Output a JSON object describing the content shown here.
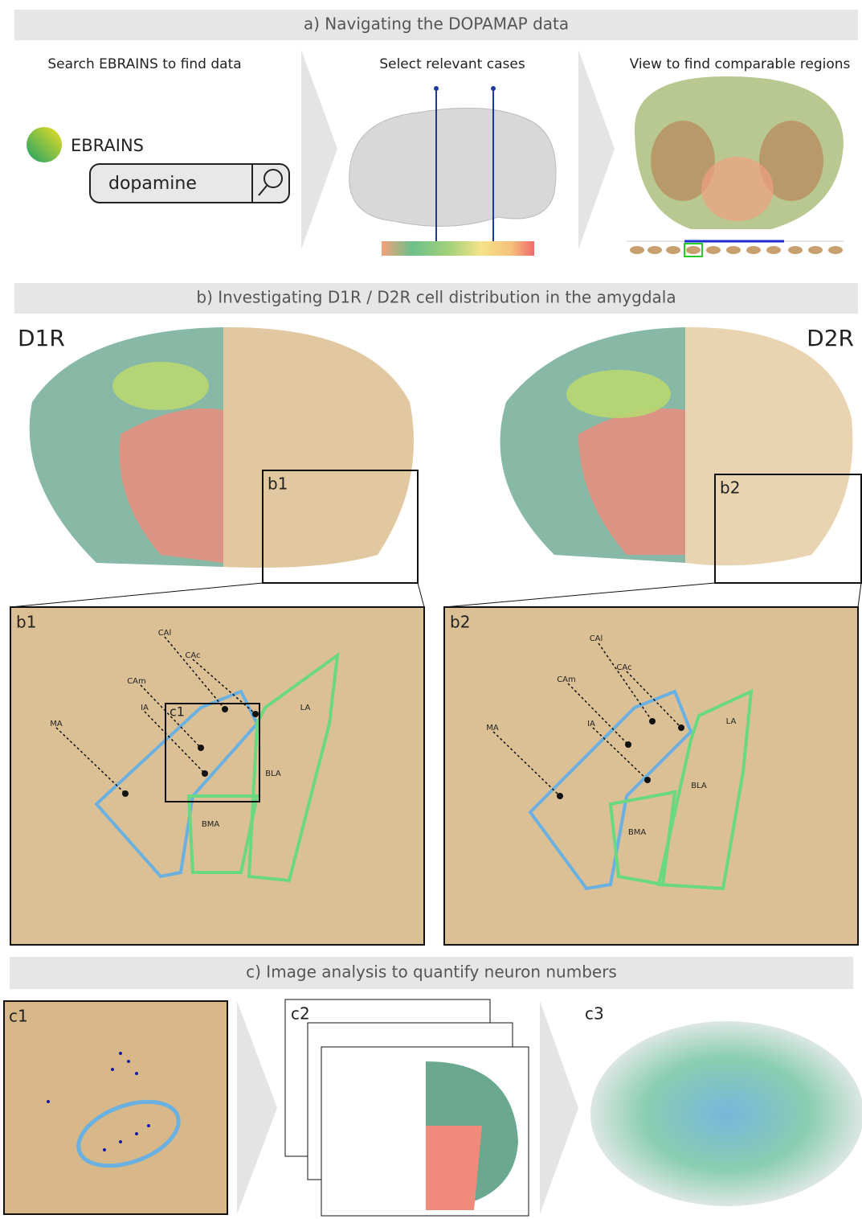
{
  "panel_a": {
    "title": "a) Navigating the DOPAMAP data",
    "steps": [
      "Search EBRAINS to find data",
      "Select relevant cases",
      "View to find comparable regions"
    ],
    "logo_text": "EBRAINS",
    "search_text": "dopamine"
  },
  "panel_b": {
    "title": "b) Investigating D1R / D2R cell distribution in the amygdala",
    "overview": [
      {
        "label": "D1R",
        "inset": "b1"
      },
      {
        "label": "D2R",
        "inset": "b2"
      }
    ],
    "zooms": [
      {
        "regions": [
          "CAl",
          "CAc",
          "CAm",
          "IA",
          "MA",
          "LA",
          "BLA",
          "BMA"
        ],
        "box_label": "c1"
      },
      {
        "regions": [
          "CAl",
          "CAc",
          "CAm",
          "IA",
          "MA",
          "LA",
          "BLA",
          "BMA"
        ]
      }
    ]
  },
  "panel_c": {
    "title": "c) Image analysis to quantify neuron numbers",
    "panels": [
      "c1",
      "c2",
      "c3"
    ]
  }
}
